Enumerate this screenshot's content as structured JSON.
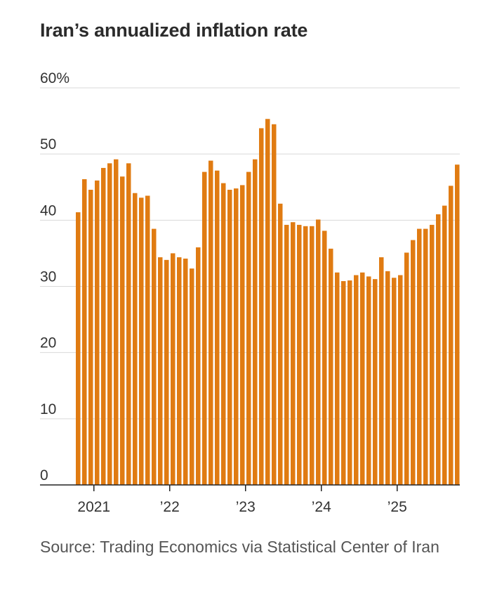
{
  "chart_data": {
    "type": "bar",
    "title": "Iran’s annualized inflation rate",
    "source": "Source: Trading Economics via Statistical Center of Iran",
    "xlabel": "",
    "ylabel": "",
    "ylim": [
      0,
      60
    ],
    "grid": true,
    "y_ticks": [
      {
        "value": 0,
        "label": "0"
      },
      {
        "value": 10,
        "label": "10"
      },
      {
        "value": 20,
        "label": "20"
      },
      {
        "value": 30,
        "label": "30"
      },
      {
        "value": 40,
        "label": "40"
      },
      {
        "value": 50,
        "label": "50"
      },
      {
        "value": 60,
        "label": "60%"
      }
    ],
    "x_ticks": [
      {
        "bar_index": 2.5,
        "label": "2021"
      },
      {
        "bar_index": 14.5,
        "label": "’22"
      },
      {
        "bar_index": 26.5,
        "label": "’23"
      },
      {
        "bar_index": 38.5,
        "label": "’24"
      },
      {
        "bar_index": 50.5,
        "label": "’25"
      }
    ],
    "start": "2020-10",
    "series": [
      {
        "name": "Annualized inflation rate",
        "color": "#E07B12",
        "values": [
          41.2,
          46.2,
          44.6,
          46.0,
          47.9,
          48.6,
          49.2,
          46.6,
          48.6,
          44.1,
          43.4,
          43.7,
          38.7,
          34.4,
          34.0,
          35.0,
          34.4,
          34.2,
          32.7,
          35.9,
          47.3,
          49.0,
          47.5,
          45.6,
          44.6,
          44.8,
          45.3,
          47.3,
          49.2,
          53.9,
          55.3,
          54.5,
          42.5,
          39.3,
          39.7,
          39.3,
          39.1,
          39.1,
          40.1,
          38.4,
          35.7,
          32.1,
          30.8,
          30.9,
          31.7,
          32.1,
          31.5,
          31.1,
          34.4,
          32.3,
          31.3,
          31.7,
          35.1,
          37.0,
          38.7,
          38.7,
          39.3,
          40.9,
          42.2,
          45.2,
          48.4
        ]
      }
    ]
  }
}
